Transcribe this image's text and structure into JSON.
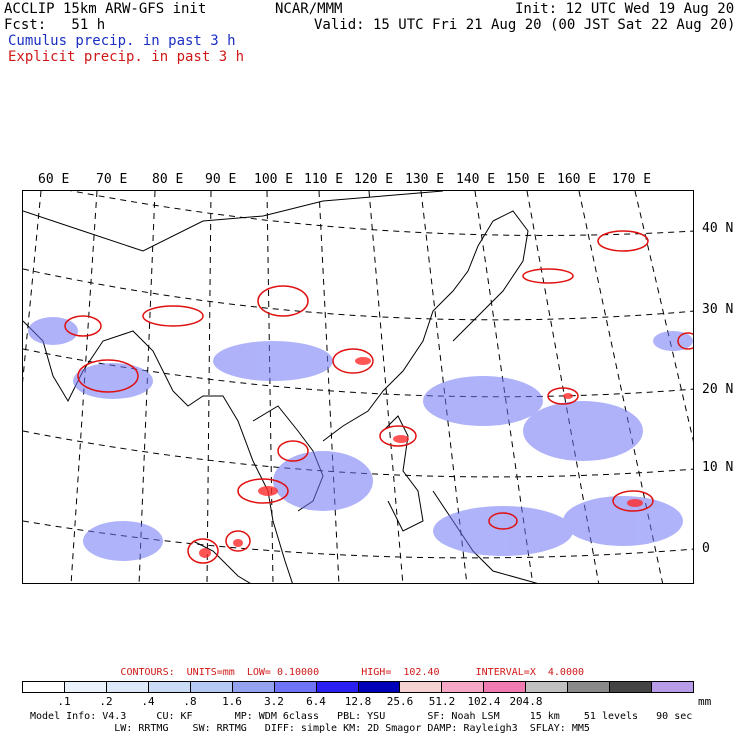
{
  "header": {
    "title_left": "ACCLIP 15km ARW-GFS init",
    "fcst": "Fcst:   51 h",
    "center": "NCAR/MMM",
    "init": "Init: 12 UTC Wed 19 Aug 20",
    "valid": "Valid: 15 UTC Fri 21 Aug 20 (00 JST Sat 22 Aug 20)",
    "legend_cumulus": "Cumulus precip. in past 3 h",
    "legend_explicit": "Explicit precip. in past 3 h"
  },
  "axes": {
    "lon_labels": [
      "60 E",
      "70 E",
      "80 E",
      "90 E",
      "100 E",
      "110 E",
      "120 E",
      "130 E",
      "140 E",
      "150 E",
      "160 E",
      "170 E"
    ],
    "lat_labels": [
      "40 N",
      "30 N",
      "20 N",
      "10 N",
      "0"
    ]
  },
  "contours_line": "CONTOURS:  UNITS=mm  LOW= 0.10000       HIGH=  102.40      INTERVAL=X  4.0000",
  "colorbar": {
    "colors": [
      "#ffffff",
      "#eaf3fb",
      "#dde9f8",
      "#cadcf5",
      "#b6c9f5",
      "#93a3f0",
      "#6e74f5",
      "#2b20f2",
      "#0000b8",
      "#f5d2d2",
      "#f7a8c6",
      "#f07ab2",
      "#c0c0c0",
      "#8a8a8a",
      "#444444",
      "#b99ce8"
    ],
    "ticks": [
      ".1",
      ".2",
      ".4",
      ".8",
      "1.6",
      "3.2",
      "6.4",
      "12.8",
      "25.6",
      "51.2",
      "102.4",
      "204.8"
    ],
    "units": "mm"
  },
  "footer": {
    "line1": "Model Info: V4.3     CU: KF       MP: WDM 6class   PBL: YSU       SF: Noah LSM     15 km    51 levels   90 sec",
    "line2": "              LW: RRTMG    SW: RRTMG   DIFF: simple KM: 2D Smagor DAMP: Rayleigh3  SFLAY: MM5"
  }
}
